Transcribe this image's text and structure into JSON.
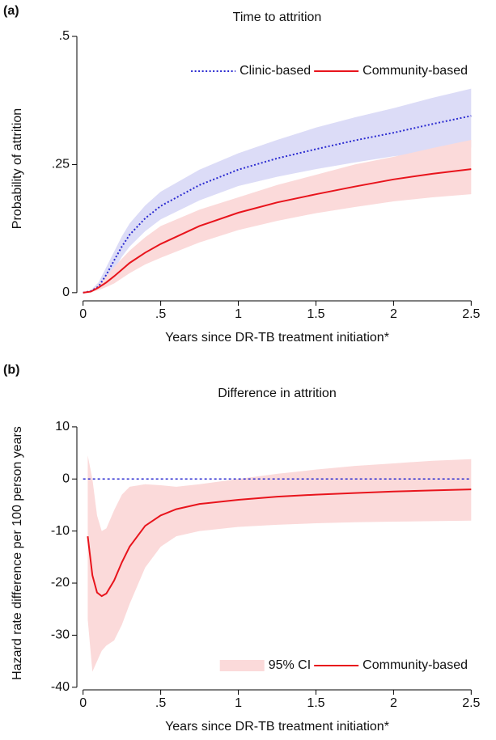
{
  "chart_data": [
    {
      "type": "line",
      "panel_label": "(a)",
      "title": "Time to attrition",
      "x_label": "Years since DR-TB treatment initiation*",
      "y_label": "Probability of attrition",
      "x": [
        0,
        0.05,
        0.1,
        0.15,
        0.2,
        0.25,
        0.3,
        0.4,
        0.5,
        0.75,
        1,
        1.25,
        1.5,
        1.75,
        2,
        2.25,
        2.5
      ],
      "series": [
        {
          "name": "Clinic-based",
          "color": "#2a2ad0",
          "dash": "dotted",
          "band_color": "#dcdcf7",
          "values": [
            0,
            0.003,
            0.012,
            0.035,
            0.063,
            0.09,
            0.113,
            0.145,
            0.169,
            0.21,
            0.24,
            0.262,
            0.28,
            0.297,
            0.312,
            0.329,
            0.345
          ],
          "upper": [
            0,
            0.005,
            0.02,
            0.05,
            0.08,
            0.11,
            0.135,
            0.17,
            0.197,
            0.24,
            0.272,
            0.298,
            0.322,
            0.342,
            0.36,
            0.38,
            0.398
          ],
          "lower": [
            0,
            0.001,
            0.006,
            0.022,
            0.045,
            0.07,
            0.09,
            0.12,
            0.143,
            0.18,
            0.208,
            0.226,
            0.241,
            0.254,
            0.266,
            0.275,
            0.283
          ]
        },
        {
          "name": "Community-based",
          "color": "#e8141c",
          "dash": "solid",
          "band_color": "#fbdada",
          "values": [
            0,
            0.002,
            0.01,
            0.02,
            0.032,
            0.045,
            0.058,
            0.078,
            0.095,
            0.13,
            0.156,
            0.176,
            0.192,
            0.207,
            0.221,
            0.232,
            0.241
          ],
          "upper": [
            0,
            0.004,
            0.016,
            0.032,
            0.05,
            0.066,
            0.082,
            0.108,
            0.13,
            0.162,
            0.186,
            0.21,
            0.23,
            0.25,
            0.265,
            0.282,
            0.298
          ],
          "lower": [
            0,
            0.001,
            0.005,
            0.011,
            0.018,
            0.028,
            0.038,
            0.055,
            0.068,
            0.098,
            0.122,
            0.14,
            0.155,
            0.167,
            0.178,
            0.186,
            0.192
          ]
        }
      ],
      "xlim": [
        -0.04,
        2.54
      ],
      "ylim": [
        -0.016,
        0.5
      ],
      "xticks": [
        0,
        {
          "value": 0.5,
          "label": ".5"
        },
        1,
        1.5,
        2,
        2.5
      ],
      "yticks": [
        0,
        {
          "value": 0.25,
          "label": ".25"
        },
        {
          "value": 0.5,
          "label": ".5"
        }
      ],
      "legend": "top-right"
    },
    {
      "type": "line",
      "panel_label": "(b)",
      "title": "Difference in attrition",
      "x_label": "Years since DR-TB treatment initiation*",
      "y_label": "Hazard rate difference per 100 person years",
      "x": [
        0.03,
        0.06,
        0.09,
        0.12,
        0.15,
        0.2,
        0.25,
        0.3,
        0.4,
        0.5,
        0.6,
        0.75,
        1,
        1.25,
        1.5,
        1.75,
        2,
        2.25,
        2.5
      ],
      "ci_name": "95% CI",
      "reference_line": {
        "value": 0,
        "color": "#2a2ad0"
      },
      "series": [
        {
          "name": "Community-based",
          "color": "#e8141c",
          "dash": "solid",
          "band_color": "#fbdada",
          "values": [
            -11,
            -18.5,
            -21.8,
            -22.5,
            -22,
            -19.5,
            -16,
            -13,
            -9,
            -7,
            -5.8,
            -4.8,
            -4,
            -3.4,
            -3,
            -2.7,
            -2.4,
            -2.2,
            -2
          ],
          "upper": [
            4.5,
            0,
            -7,
            -10,
            -9.5,
            -6,
            -3,
            -1.5,
            -1,
            -1.2,
            -1.5,
            -1,
            0,
            1,
            1.8,
            2.5,
            3,
            3.5,
            3.8
          ],
          "lower": [
            -27,
            -37,
            -35,
            -33,
            -32,
            -31,
            -28,
            -24,
            -17,
            -13,
            -11,
            -10,
            -9.2,
            -8.8,
            -8.5,
            -8.3,
            -8.2,
            -8.1,
            -8
          ]
        }
      ],
      "xlim": [
        -0.04,
        2.54
      ],
      "ylim": [
        -40.5,
        12
      ],
      "xticks": [
        0,
        {
          "value": 0.5,
          "label": ".5"
        },
        1,
        1.5,
        2,
        2.5
      ],
      "yticks": [
        10,
        0,
        -10,
        -20,
        -30,
        -40
      ],
      "legend": "bottom-right"
    }
  ]
}
